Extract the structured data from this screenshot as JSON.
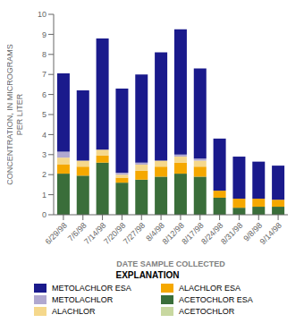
{
  "chart_data": {
    "type": "bar",
    "stacked": true,
    "grid": false,
    "legend": "bottom",
    "xlabel": "DATE SAMPLE COLLECTED",
    "ylabel": "CONCENTRATION, IN MICROGRAMS\nPER LITER",
    "annotations": [
      "EXPLANATION"
    ],
    "categories": [
      "6/29/98",
      "7/6/98",
      "7/14/98",
      "7/20/98",
      "7/27/98",
      "8/4/98",
      "8/12/98",
      "8/17/98",
      "8/24/98",
      "8/31/98",
      "9/8/98",
      "9/14/98"
    ],
    "series": [
      {
        "name": "ACETOCHLOR",
        "color": "#c8d8a0",
        "values": [
          0.0,
          0.0,
          0.0,
          0.0,
          0.0,
          0.0,
          0.0,
          0.0,
          0.0,
          0.0,
          0.0,
          0.0
        ]
      },
      {
        "name": "ACETOCHLOR ESA",
        "color": "#3a6e3a",
        "values": [
          2.05,
          1.95,
          2.6,
          1.6,
          1.75,
          1.9,
          2.05,
          1.9,
          0.85,
          0.35,
          0.4,
          0.4
        ]
      },
      {
        "name": "ALACHLOR ESA",
        "color": "#f5a800",
        "values": [
          0.45,
          0.45,
          0.35,
          0.25,
          0.45,
          0.5,
          0.55,
          0.5,
          0.35,
          0.45,
          0.4,
          0.35
        ]
      },
      {
        "name": "ALACHLOR",
        "color": "#f5d88c",
        "values": [
          0.35,
          0.3,
          0.3,
          0.15,
          0.3,
          0.3,
          0.3,
          0.3,
          0.0,
          0.0,
          0.0,
          0.0
        ]
      },
      {
        "name": "METOLACHLOR",
        "color": "#b0a8d0",
        "values": [
          0.3,
          0.0,
          0.0,
          0.1,
          0.1,
          0.0,
          0.1,
          0.1,
          0.0,
          0.0,
          0.0,
          0.0
        ]
      },
      {
        "name": "METOLACHLOR ESA",
        "color": "#1a1a8c",
        "values": [
          3.9,
          3.5,
          5.55,
          4.2,
          4.4,
          5.4,
          6.25,
          4.5,
          2.6,
          2.1,
          1.85,
          1.7
        ]
      }
    ],
    "ylim": [
      0,
      10
    ],
    "yticks": [
      0,
      1,
      2,
      3,
      4,
      5,
      6,
      7,
      8,
      9,
      10
    ]
  }
}
